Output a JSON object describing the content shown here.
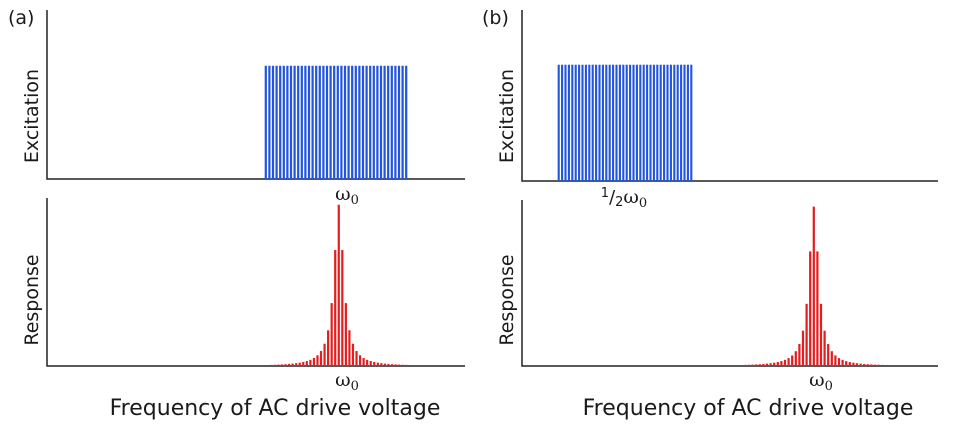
{
  "figure": {
    "panel_a": {
      "label": "(a)",
      "excitation_ylabel": "Excitation",
      "response_ylabel": "Response",
      "excitation_tick": "ω",
      "excitation_tick_sub": "0",
      "response_tick": "ω",
      "response_tick_sub": "0",
      "xlabel": "Frequency of AC drive voltage"
    },
    "panel_b": {
      "label": "(b)",
      "excitation_ylabel": "Excitation",
      "response_ylabel": "Response",
      "excitation_tick_num": "1",
      "excitation_tick_slash": "/",
      "excitation_tick_den": "2",
      "excitation_tick": "ω",
      "excitation_tick_sub": "0",
      "response_tick": "ω",
      "response_tick_sub": "0",
      "xlabel": "Frequency of AC drive voltage"
    },
    "colors": {
      "excitation": "#2255dd",
      "response": "#e41e1e",
      "axis": "#222222"
    }
  },
  "chart_data": [
    {
      "type": "bar",
      "name": "a-excitation",
      "title": "Excitation (a)",
      "xlabel": "",
      "ylabel": "Excitation",
      "ylim": [
        0,
        1
      ],
      "band": [
        0.0,
        1.0
      ],
      "n_lines": 40,
      "level": 0.67
    },
    {
      "type": "bar",
      "name": "a-response",
      "title": "Response (a)",
      "xlabel": "Frequency of AC drive voltage",
      "ylabel": "Response",
      "ylim": [
        0,
        1
      ],
      "band": [
        0.0,
        1.0
      ],
      "n_lines": 40,
      "peak_index": 20,
      "gamma": 1.6,
      "peak": 0.96
    },
    {
      "type": "bar",
      "name": "b-excitation",
      "title": "Excitation (b)",
      "xlabel": "",
      "ylabel": "Excitation",
      "ylim": [
        0,
        1
      ],
      "band": [
        0.0,
        1.0
      ],
      "n_lines": 40,
      "level": 0.68
    },
    {
      "type": "bar",
      "name": "b-response",
      "title": "Response (b)",
      "xlabel": "Frequency of AC drive voltage",
      "ylabel": "Response",
      "ylim": [
        0,
        1
      ],
      "band": [
        0.0,
        1.0
      ],
      "n_lines": 40,
      "peak_index": 20,
      "gamma": 1.6,
      "peak": 0.96
    }
  ]
}
